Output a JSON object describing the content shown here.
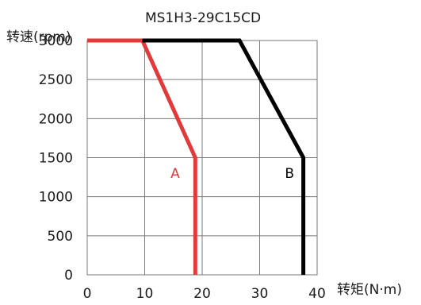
{
  "chart_data": {
    "type": "line",
    "title": "MS1H3-29C15CD",
    "xlabel": "转矩(N·m)",
    "ylabel": "转速(rpm)",
    "xlim": [
      0,
      40
    ],
    "ylim": [
      0,
      3000
    ],
    "x_ticks": [
      0,
      10,
      20,
      30,
      40
    ],
    "y_ticks": [
      0,
      500,
      1000,
      1500,
      2000,
      2500,
      3000
    ],
    "grid": true,
    "series": [
      {
        "name": "A",
        "color": "#e23a3a",
        "points": [
          [
            0,
            3000
          ],
          [
            9.6,
            3000
          ],
          [
            18.8,
            1500
          ],
          [
            18.8,
            0
          ]
        ]
      },
      {
        "name": "B",
        "color": "#000000",
        "points": [
          [
            9.6,
            3000
          ],
          [
            26.5,
            3000
          ],
          [
            37.6,
            1500
          ],
          [
            37.6,
            0
          ]
        ]
      }
    ],
    "annotations": [
      {
        "text": "A",
        "x": 15.3,
        "y": 1300,
        "color": "#e23a3a"
      },
      {
        "text": "B",
        "x": 35.2,
        "y": 1300,
        "color": "#000000"
      }
    ]
  }
}
